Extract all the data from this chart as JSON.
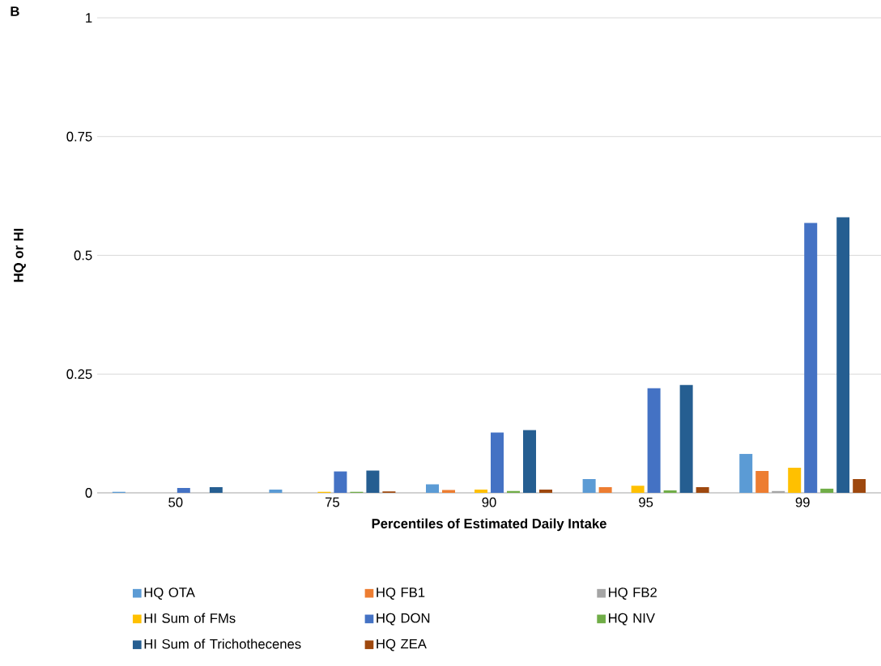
{
  "chart_data": {
    "type": "bar",
    "title": "B",
    "xlabel": "Percentiles of Estimated Daily Intake",
    "ylabel": "HQ or HI",
    "categories": [
      "50",
      "75",
      "90",
      "95",
      "99"
    ],
    "series": [
      {
        "name": "HQ OTA",
        "color": "#5b9bd5",
        "values": [
          0.002,
          0.007,
          0.018,
          0.029,
          0.082
        ]
      },
      {
        "name": "HQ FB1",
        "color": "#ed7d31",
        "values": [
          0,
          0,
          0.006,
          0.012,
          0.046
        ]
      },
      {
        "name": "HQ FB2",
        "color": "#a5a5a5",
        "values": [
          0,
          0,
          0,
          0,
          0.004
        ]
      },
      {
        "name": "HI Sum of FMs",
        "color": "#ffc000",
        "values": [
          0,
          0.002,
          0.007,
          0.015,
          0.053
        ]
      },
      {
        "name": "HQ DON",
        "color": "#4472c4",
        "values": [
          0.01,
          0.045,
          0.127,
          0.22,
          0.568
        ]
      },
      {
        "name": "HQ NIV",
        "color": "#70ad47",
        "values": [
          0,
          0.002,
          0.004,
          0.005,
          0.009
        ]
      },
      {
        "name": "HI Sum of Trichothecenes",
        "color": "#255e91",
        "values": [
          0.012,
          0.047,
          0.132,
          0.227,
          0.58
        ]
      },
      {
        "name": "HQ ZEA",
        "color": "#9e480e",
        "values": [
          0,
          0.003,
          0.007,
          0.012,
          0.029
        ]
      }
    ],
    "ylim": [
      0,
      1
    ],
    "yticks": [
      0,
      0.25,
      0.5,
      0.75,
      1
    ],
    "grid": "y",
    "legend": "bottom"
  }
}
